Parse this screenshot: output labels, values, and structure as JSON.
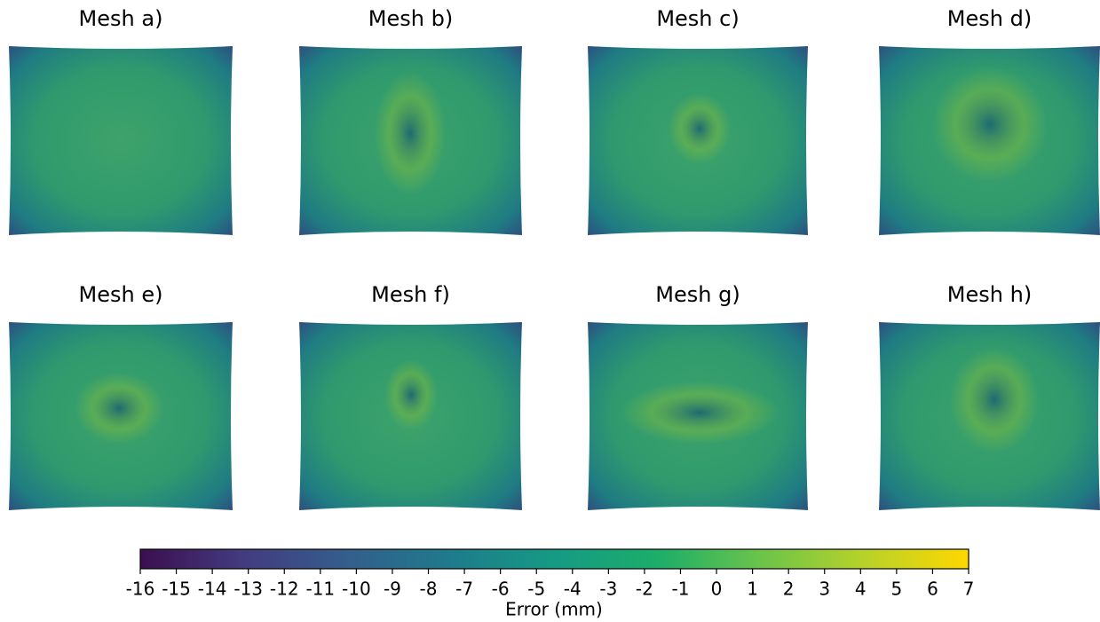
{
  "chart_data": {
    "type": "colorbar-grid",
    "panels": [
      "Mesh a)",
      "Mesh b)",
      "Mesh c)",
      "Mesh d)",
      "Mesh e)",
      "Mesh f)",
      "Mesh g)",
      "Mesh h)"
    ],
    "xlabel": "Error (mm)",
    "xlim": [
      -16,
      7
    ],
    "xticks": [
      -16,
      -15,
      -14,
      -13,
      -12,
      -11,
      -10,
      -9,
      -8,
      -7,
      -6,
      -5,
      -4,
      -3,
      -2,
      -1,
      0,
      1,
      2,
      3,
      4,
      5,
      6,
      7
    ],
    "colors": [
      "#3b0f4f",
      "#433b80",
      "#345e8c",
      "#1f7b8c",
      "#159a84",
      "#1cae6a",
      "#6cc44a",
      "#b8d22a",
      "#ffd700"
    ]
  }
}
